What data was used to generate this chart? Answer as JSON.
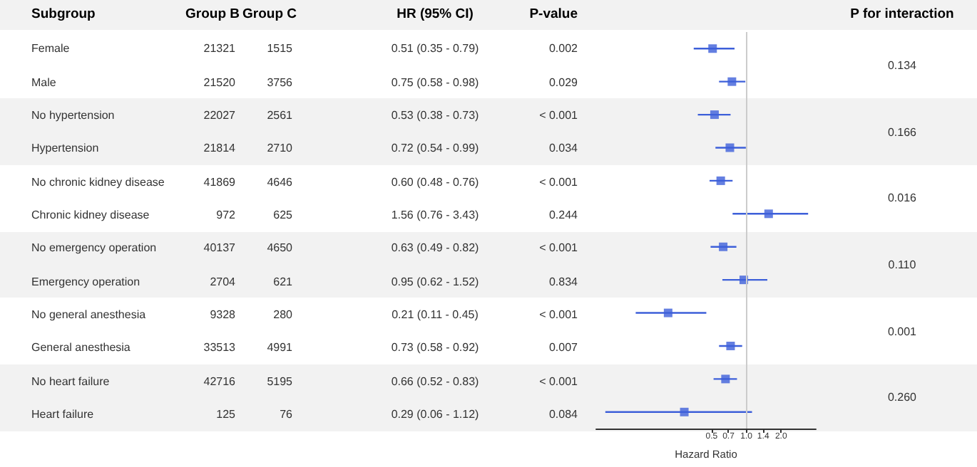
{
  "chart_data": [
    {
      "type": "other",
      "ylabel": "Subgroup",
      "categories": [
        "Female",
        "Male",
        "No hypertension",
        "Hypertension",
        "No chronic kidney disease",
        "Chronic kidney disease",
        "No emergency operation",
        "Emergency operation",
        "No general anesthesia",
        "General anesthesia",
        "No heart failure",
        "Heart failure"
      ],
      "series": [
        {
          "name": "Group B",
          "values": [
            21321,
            21520,
            22027,
            21814,
            41869,
            972,
            40137,
            2704,
            9328,
            33513,
            42716,
            125
          ]
        },
        {
          "name": "Group C",
          "values": [
            1515,
            3756,
            2561,
            2710,
            4646,
            625,
            4650,
            621,
            280,
            4991,
            5195,
            76
          ]
        }
      ],
      "data_labels": true
    },
    {
      "type": "other",
      "title": "HR (95% CI)",
      "annotations": [
        "0.51 (0.35 - 0.79)",
        "0.75 (0.58 - 0.98)",
        "0.53 (0.38 - 0.73)",
        "0.72 (0.54 - 0.99)",
        "0.60 (0.48 - 0.76)",
        "1.56 (0.76 - 3.43)",
        "0.63 (0.49 - 0.82)",
        "0.95 (0.62 - 1.52)",
        "0.21 (0.11 - 0.45)",
        "0.73 (0.58 - 0.92)",
        "0.66 (0.52 - 0.83)",
        "0.29 (0.06 - 1.12)"
      ]
    },
    {
      "type": "other",
      "title": "P-value",
      "annotations": [
        "0.002",
        "0.029",
        "< 0.001",
        "0.034",
        "< 0.001",
        "0.244",
        "< 0.001",
        "0.834",
        "< 0.001",
        "0.007",
        "< 0.001",
        "0.084"
      ]
    },
    {
      "type": "scatter",
      "orientation": "horizontal",
      "values": [
        0.51,
        0.75,
        0.53,
        0.72,
        0.6,
        1.56,
        0.63,
        0.95,
        0.21,
        0.73,
        0.66,
        0.29
      ],
      "errors": [
        [
          0.35,
          0.79
        ],
        [
          0.58,
          0.98
        ],
        [
          0.38,
          0.73
        ],
        [
          0.54,
          0.99
        ],
        [
          0.48,
          0.76
        ],
        [
          0.76,
          3.43
        ],
        [
          0.49,
          0.82
        ],
        [
          0.62,
          1.52
        ],
        [
          0.11,
          0.45
        ],
        [
          0.58,
          0.92
        ],
        [
          0.52,
          0.83
        ],
        [
          0.06,
          1.12
        ]
      ],
      "color": "#3d5fd9",
      "marker": "square",
      "log": "x",
      "xlim": [
        0.05,
        4
      ],
      "xticks": [
        0.5,
        0.7,
        {
          "value": 1,
          "label": "1.0"
        },
        1.4,
        {
          "value": 2,
          "label": "2.0"
        }
      ],
      "xlabel": "Hazard Ratio",
      "tick_labels": "x",
      "grid": false,
      "ref_lines": [
        {
          "axis": "x",
          "value": 1,
          "label": null,
          "color": "#cccccc"
        }
      ]
    },
    {
      "type": "other",
      "title": "P for interaction",
      "values": [
        0.134,
        0.166,
        0.016,
        0.11,
        0.001,
        0.26
      ],
      "value_labels": [
        "0.134",
        "0.166",
        "0.016",
        "0.110",
        "0.001",
        "0.260"
      ]
    }
  ]
}
